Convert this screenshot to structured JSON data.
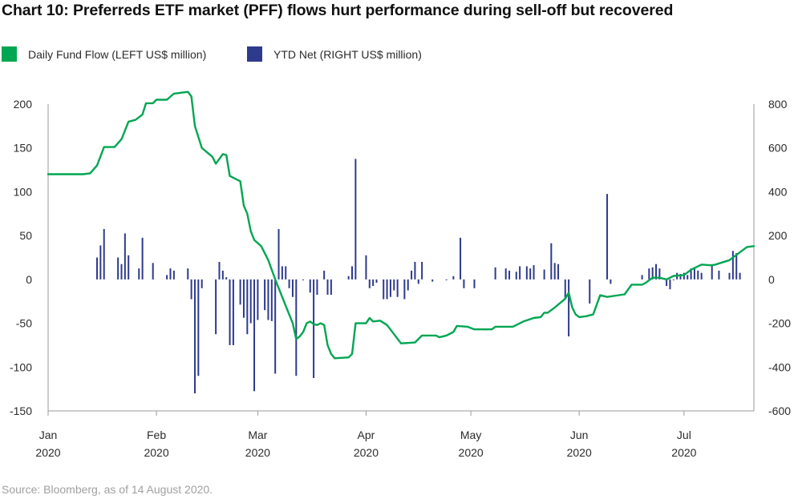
{
  "title": "Chart 10: Preferreds ETF market (PFF) flows hurt performance during sell-off but recovered",
  "source": "Source: Bloomberg, as of 14 August 2020.",
  "legend": [
    {
      "label": "Daily Fund Flow (LEFT US$ million)",
      "color": "#00a651"
    },
    {
      "label": "YTD Net (RIGHT US$ million)",
      "color": "#2e3a8c"
    }
  ],
  "chart_data": {
    "type": "line+bar",
    "title": "Chart 10: Preferreds ETF market (PFF) flows hurt performance during sell-off but recovered",
    "x_ticks": [
      {
        "month": "Jan",
        "year": "2020",
        "day": 0
      },
      {
        "month": "Feb",
        "year": "2020",
        "day": 31
      },
      {
        "month": "Mar",
        "year": "2020",
        "day": 60
      },
      {
        "month": "Apr",
        "year": "2020",
        "day": 91
      },
      {
        "month": "May",
        "year": "2020",
        "day": 121
      },
      {
        "month": "Jun",
        "year": "2020",
        "day": 152
      },
      {
        "month": "Jul",
        "year": "2020",
        "day": 182
      }
    ],
    "x_range": [
      0,
      202
    ],
    "y_left": {
      "label": "Daily Fund Flow (LEFT US$ million)",
      "range": [
        -150,
        200
      ],
      "ticks": [
        200,
        150,
        100,
        50,
        0,
        -50,
        -100,
        -150
      ]
    },
    "y_right": {
      "label": "YTD Net (RIGHT US$ million)",
      "range": [
        -600,
        800
      ],
      "ticks": [
        800,
        600,
        400,
        200,
        0,
        -200,
        -400,
        -600
      ]
    },
    "series": [
      {
        "name": "Daily Fund Flow (LEFT US$ million)",
        "axis": "left",
        "color": "#00a651",
        "points": [
          [
            0,
            120
          ],
          [
            10,
            120
          ],
          [
            12,
            121
          ],
          [
            14,
            130
          ],
          [
            16,
            151
          ],
          [
            19,
            151
          ],
          [
            21,
            160
          ],
          [
            23,
            180
          ],
          [
            25,
            182
          ],
          [
            27,
            188
          ],
          [
            28,
            201
          ],
          [
            30,
            201
          ],
          [
            31,
            205
          ],
          [
            34,
            205
          ],
          [
            36,
            212
          ],
          [
            40,
            214
          ],
          [
            41,
            209
          ],
          [
            42,
            175
          ],
          [
            44,
            150
          ],
          [
            47,
            140
          ],
          [
            48,
            132
          ],
          [
            50,
            143
          ],
          [
            51,
            142
          ],
          [
            52,
            118
          ],
          [
            55,
            112
          ],
          [
            56,
            84
          ],
          [
            57,
            75
          ],
          [
            58,
            55
          ],
          [
            59,
            45
          ],
          [
            61,
            38
          ],
          [
            63,
            22
          ],
          [
            65,
            0
          ],
          [
            68,
            -30
          ],
          [
            70,
            -50
          ],
          [
            71,
            -68
          ],
          [
            72,
            -65
          ],
          [
            73,
            -60
          ],
          [
            74,
            -50
          ],
          [
            75,
            -48
          ],
          [
            76,
            -51
          ],
          [
            77,
            -52
          ],
          [
            78,
            -50
          ],
          [
            79,
            -52
          ],
          [
            80,
            -75
          ],
          [
            81,
            -85
          ],
          [
            82,
            -90
          ],
          [
            86,
            -89
          ],
          [
            87,
            -85
          ],
          [
            88,
            -50
          ],
          [
            91,
            -50
          ],
          [
            92,
            -44
          ],
          [
            93,
            -48
          ],
          [
            95,
            -47
          ],
          [
            97,
            -52
          ],
          [
            101,
            -73
          ],
          [
            105,
            -72
          ],
          [
            107,
            -64
          ],
          [
            111,
            -64
          ],
          [
            112,
            -66
          ],
          [
            114,
            -64
          ],
          [
            116,
            -60
          ],
          [
            117,
            -53
          ],
          [
            120,
            -54
          ],
          [
            122,
            -57
          ],
          [
            127,
            -57
          ],
          [
            128,
            -54
          ],
          [
            133,
            -54
          ],
          [
            134,
            -52
          ],
          [
            136,
            -48
          ],
          [
            139,
            -44
          ],
          [
            141,
            -43
          ],
          [
            142,
            -38
          ],
          [
            143,
            -38
          ],
          [
            145,
            -32
          ],
          [
            148,
            -22
          ],
          [
            149,
            -15
          ],
          [
            150,
            -32
          ],
          [
            151,
            -40
          ],
          [
            152,
            -43
          ],
          [
            154,
            -42
          ],
          [
            156,
            -40
          ],
          [
            158,
            -18
          ],
          [
            160,
            -20
          ],
          [
            165,
            -17
          ],
          [
            167,
            -6
          ],
          [
            170,
            -6
          ],
          [
            171,
            -4
          ],
          [
            173,
            2
          ],
          [
            175,
            2
          ],
          [
            177,
            0
          ],
          [
            179,
            4
          ],
          [
            182,
            5
          ],
          [
            184,
            11
          ],
          [
            187,
            17
          ],
          [
            190,
            16
          ],
          [
            191,
            17
          ],
          [
            195,
            22
          ],
          [
            200,
            37
          ],
          [
            202,
            38
          ]
        ]
      },
      {
        "name": "YTD Net (RIGHT US$ million)",
        "axis": "right",
        "color": "#2e3a8c",
        "points": [
          [
            14,
            100
          ],
          [
            15,
            155
          ],
          [
            16,
            230
          ],
          [
            20,
            100
          ],
          [
            21,
            70
          ],
          [
            22,
            210
          ],
          [
            23,
            110
          ],
          [
            26,
            50
          ],
          [
            27,
            190
          ],
          [
            30,
            75
          ],
          [
            34,
            20
          ],
          [
            35,
            50
          ],
          [
            36,
            40
          ],
          [
            40,
            50
          ],
          [
            41,
            -90
          ],
          [
            42,
            -520
          ],
          [
            43,
            -440
          ],
          [
            44,
            -40
          ],
          [
            48,
            -250
          ],
          [
            49,
            80
          ],
          [
            50,
            40
          ],
          [
            51,
            10
          ],
          [
            52,
            -300
          ],
          [
            53,
            -300
          ],
          [
            55,
            -115
          ],
          [
            56,
            -175
          ],
          [
            57,
            -250
          ],
          [
            58,
            -200
          ],
          [
            59,
            -510
          ],
          [
            60,
            -185
          ],
          [
            62,
            -140
          ],
          [
            63,
            -185
          ],
          [
            64,
            -190
          ],
          [
            65,
            -430
          ],
          [
            66,
            230
          ],
          [
            67,
            60
          ],
          [
            68,
            60
          ],
          [
            69,
            -40
          ],
          [
            70,
            -80
          ],
          [
            71,
            -440
          ],
          [
            73,
            0
          ],
          [
            75,
            -60
          ],
          [
            76,
            -450
          ],
          [
            77,
            -70
          ],
          [
            79,
            40
          ],
          [
            80,
            -70
          ],
          [
            81,
            -70
          ],
          [
            86,
            15
          ],
          [
            87,
            60
          ],
          [
            88,
            550
          ],
          [
            91,
            110
          ],
          [
            92,
            -40
          ],
          [
            93,
            -30
          ],
          [
            94,
            -15
          ],
          [
            96,
            -90
          ],
          [
            97,
            -90
          ],
          [
            98,
            -80
          ],
          [
            99,
            -50
          ],
          [
            100,
            -80
          ],
          [
            102,
            -90
          ],
          [
            103,
            -50
          ],
          [
            104,
            40
          ],
          [
            105,
            80
          ],
          [
            106,
            -20
          ],
          [
            107,
            80
          ],
          [
            110,
            -10
          ],
          [
            114,
            0
          ],
          [
            116,
            15
          ],
          [
            118,
            190
          ],
          [
            119,
            -40
          ],
          [
            122,
            -40
          ],
          [
            128,
            55
          ],
          [
            131,
            50
          ],
          [
            132,
            40
          ],
          [
            134,
            35
          ],
          [
            135,
            60
          ],
          [
            137,
            60
          ],
          [
            138,
            50
          ],
          [
            139,
            65
          ],
          [
            142,
            45
          ],
          [
            144,
            165
          ],
          [
            145,
            75
          ],
          [
            146,
            70
          ],
          [
            148,
            -90
          ],
          [
            149,
            -260
          ],
          [
            155,
            -110
          ],
          [
            160,
            390
          ],
          [
            161,
            -20
          ],
          [
            170,
            20
          ],
          [
            172,
            50
          ],
          [
            173,
            55
          ],
          [
            174,
            70
          ],
          [
            175,
            50
          ],
          [
            177,
            -30
          ],
          [
            178,
            -45
          ],
          [
            179,
            0
          ],
          [
            180,
            30
          ],
          [
            181,
            25
          ],
          [
            182,
            30
          ],
          [
            183,
            20
          ],
          [
            184,
            50
          ],
          [
            185,
            55
          ],
          [
            186,
            40
          ],
          [
            187,
            30
          ],
          [
            190,
            70
          ],
          [
            192,
            40
          ],
          [
            195,
            30
          ],
          [
            196,
            130
          ],
          [
            197,
            120
          ],
          [
            198,
            30
          ]
        ]
      }
    ]
  }
}
